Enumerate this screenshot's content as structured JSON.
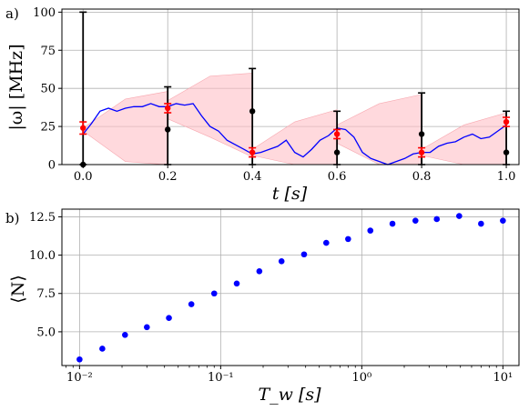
{
  "panels": [
    {
      "tag": "a)",
      "xlabel": "t [s]",
      "ylabel": "|ω| [MHz]"
    },
    {
      "tag": "b)",
      "xlabel": "T_w [s]",
      "ylabel": "⟨N⟩"
    }
  ],
  "colors": {
    "trace": "#0000ff",
    "estimate": "#ff0000",
    "measured": "#000000",
    "band": "#ffc0c6",
    "grid": "#b0b0b0"
  },
  "chart_data": [
    {
      "type": "line",
      "xlim": [
        -0.05,
        1.03
      ],
      "ylim": [
        0,
        102
      ],
      "xticks": [
        0.0,
        0.2,
        0.4,
        0.6,
        0.8,
        1.0
      ],
      "xtick_labels": [
        "0.0",
        "0.2",
        "0.4",
        "0.6",
        "0.8",
        "1.0"
      ],
      "yticks": [
        0,
        25,
        50,
        75,
        100
      ],
      "ytick_labels": [
        "0",
        "25",
        "50",
        "75",
        "100"
      ],
      "grid": true,
      "series": [
        {
          "kind": "line",
          "x": [
            0.0,
            0.02,
            0.04,
            0.06,
            0.08,
            0.1,
            0.12,
            0.14,
            0.16,
            0.18,
            0.2,
            0.22,
            0.24,
            0.26,
            0.27,
            0.28,
            0.3,
            0.32,
            0.34,
            0.36,
            0.38,
            0.4,
            0.42,
            0.44,
            0.46,
            0.48,
            0.5,
            0.52,
            0.54,
            0.56,
            0.58,
            0.6,
            0.62,
            0.64,
            0.66,
            0.68,
            0.7,
            0.72,
            0.74,
            0.76,
            0.78,
            0.8,
            0.82,
            0.84,
            0.86,
            0.88,
            0.9,
            0.92,
            0.94,
            0.96,
            0.98,
            1.0
          ],
          "y": [
            20,
            27,
            35,
            37,
            35,
            37,
            38,
            38,
            40,
            38,
            38,
            40,
            39,
            40,
            36,
            32,
            25,
            22,
            16,
            13,
            10,
            7,
            8,
            10,
            12,
            16,
            8,
            5,
            10,
            16,
            19,
            24,
            23,
            18,
            8,
            4,
            2,
            0,
            2,
            4,
            7,
            8,
            8,
            12,
            14,
            15,
            18,
            20,
            17,
            18,
            22,
            26
          ]
        },
        {
          "kind": "band",
          "segments": [
            {
              "x": [
                0.0,
                0.1,
                0.2
              ],
              "lower": [
                22,
                2,
                0
              ],
              "upper": [
                24,
                43,
                48
              ]
            },
            {
              "x": [
                0.2,
                0.3,
                0.4
              ],
              "lower": [
                30,
                18,
                5
              ],
              "upper": [
                42,
                58,
                60
              ]
            },
            {
              "x": [
                0.4,
                0.5,
                0.6
              ],
              "lower": [
                6,
                0,
                0
              ],
              "upper": [
                10,
                28,
                36
              ]
            },
            {
              "x": [
                0.6,
                0.7,
                0.8
              ],
              "lower": [
                14,
                0,
                0
              ],
              "upper": [
                26,
                40,
                46
              ]
            },
            {
              "x": [
                0.8,
                0.9,
                1.0
              ],
              "lower": [
                6,
                0,
                0
              ],
              "upper": [
                10,
                26,
                34
              ]
            }
          ]
        },
        {
          "kind": "errorbar",
          "x": [
            0.0,
            0.2,
            0.4,
            0.6,
            0.8,
            1.0
          ],
          "y": [
            0,
            23,
            35,
            8,
            20,
            8
          ],
          "yerr_low": [
            0,
            23,
            35,
            8,
            20,
            8
          ],
          "yerr_high": [
            100,
            28,
            28,
            27,
            27,
            27
          ]
        },
        {
          "kind": "errorbar",
          "x": [
            0.0,
            0.2,
            0.4,
            0.6,
            0.8,
            1.0
          ],
          "y": [
            24,
            37,
            8,
            20,
            8,
            28
          ],
          "yerr_low": [
            4,
            3,
            3,
            3,
            3,
            3
          ],
          "yerr_high": [
            4,
            3,
            3,
            3,
            3,
            3
          ]
        }
      ]
    },
    {
      "type": "scatter",
      "xscale": "log",
      "xlim": [
        0.0075,
        13
      ],
      "ylim": [
        2.8,
        13.0
      ],
      "xticks": [
        0.01,
        0.1,
        1,
        10
      ],
      "xtick_labels": [
        "10⁻²",
        "10⁻¹",
        "10⁰",
        "10¹"
      ],
      "yticks": [
        5.0,
        7.5,
        10.0,
        12.5
      ],
      "ytick_labels": [
        "5.0",
        "7.5",
        "10.0",
        "12.5"
      ],
      "grid": true,
      "series": [
        {
          "x": [
            0.01,
            0.0145,
            0.021,
            0.03,
            0.043,
            0.062,
            0.09,
            0.13,
            0.188,
            0.27,
            0.39,
            0.56,
            0.8,
            1.15,
            1.65,
            2.4,
            3.4,
            4.9,
            7.0,
            10.0
          ],
          "y": [
            3.2,
            3.9,
            4.8,
            5.3,
            5.9,
            6.8,
            7.5,
            8.15,
            8.95,
            9.6,
            10.05,
            10.8,
            11.05,
            11.6,
            12.05,
            12.25,
            12.35,
            12.55,
            12.05,
            12.25
          ]
        }
      ]
    }
  ]
}
